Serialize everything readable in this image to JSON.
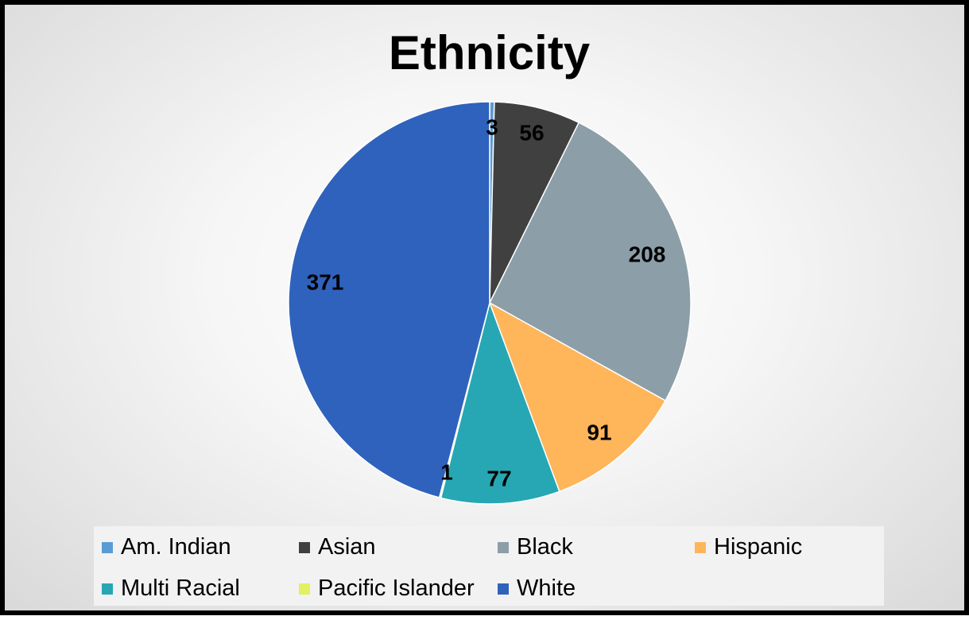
{
  "chart_data": {
    "type": "pie",
    "title": "Ethnicity",
    "slices": [
      {
        "name": "Am. Indian",
        "value": 3,
        "color": "#5b9bd5"
      },
      {
        "name": "Asian",
        "value": 56,
        "color": "#404040"
      },
      {
        "name": "Black",
        "value": 208,
        "color": "#8c9ea8"
      },
      {
        "name": "Hispanic",
        "value": 91,
        "color": "#ffb55a"
      },
      {
        "name": "Multi Racial",
        "value": 77,
        "color": "#27a7b3"
      },
      {
        "name": "Pacific Islander",
        "value": 1,
        "color": "#e2f061"
      },
      {
        "name": "White",
        "value": 371,
        "color": "#2f62bc"
      }
    ],
    "legend_position": "bottom"
  }
}
